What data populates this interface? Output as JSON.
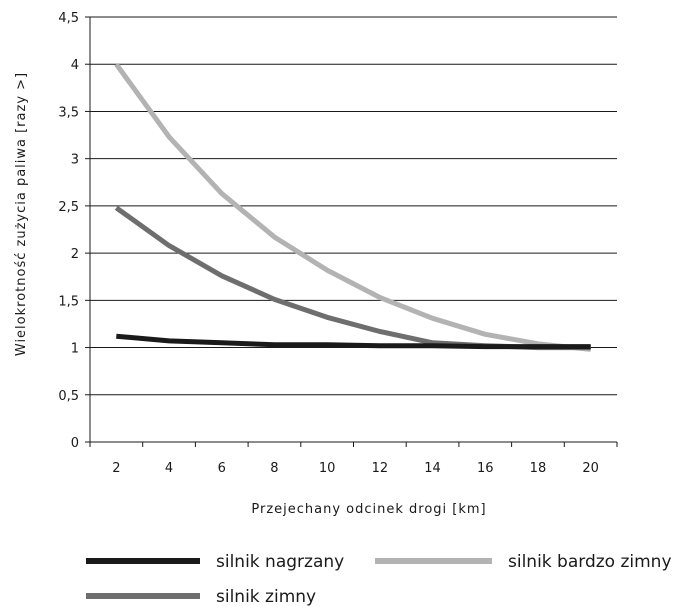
{
  "chart_data": {
    "type": "line",
    "xlabel": "Przejechany odcinek drogi [km]",
    "ylabel": "Wielokrotność zużycia paliwa [razy >]",
    "x": [
      2,
      4,
      6,
      8,
      10,
      12,
      14,
      16,
      18,
      20
    ],
    "x_ticks": [
      "2",
      "4",
      "6",
      "8",
      "10",
      "12",
      "14",
      "16",
      "18",
      "20"
    ],
    "y_ticks": [
      "0",
      "0,5",
      "1",
      "1,5",
      "2",
      "2,5",
      "3",
      "3,5",
      "4",
      "4,5"
    ],
    "ylim": [
      0,
      4.5
    ],
    "grid": "horizontal",
    "legend_position": "bottom",
    "series": [
      {
        "name": "silnik nagrzany",
        "color": "#1a1a1a",
        "values": [
          1.12,
          1.07,
          1.05,
          1.03,
          1.03,
          1.02,
          1.02,
          1.01,
          1.01,
          1.01
        ]
      },
      {
        "name": "silnik zimny",
        "color": "#6e6e6e",
        "values": [
          2.48,
          2.08,
          1.76,
          1.51,
          1.32,
          1.17,
          1.05,
          1.02,
          1.0,
          1.0
        ]
      },
      {
        "name": "silnik bardzo zimny",
        "color": "#b3b3b3",
        "values": [
          4.0,
          3.23,
          2.63,
          2.17,
          1.82,
          1.53,
          1.31,
          1.14,
          1.04,
          0.98
        ]
      }
    ],
    "legend": [
      {
        "label": "silnik nagrzany",
        "color": "#1a1a1a"
      },
      {
        "label": "silnik bardzo zimny",
        "color": "#b3b3b3"
      },
      {
        "label": "silnik zimny",
        "color": "#6e6e6e"
      }
    ]
  }
}
